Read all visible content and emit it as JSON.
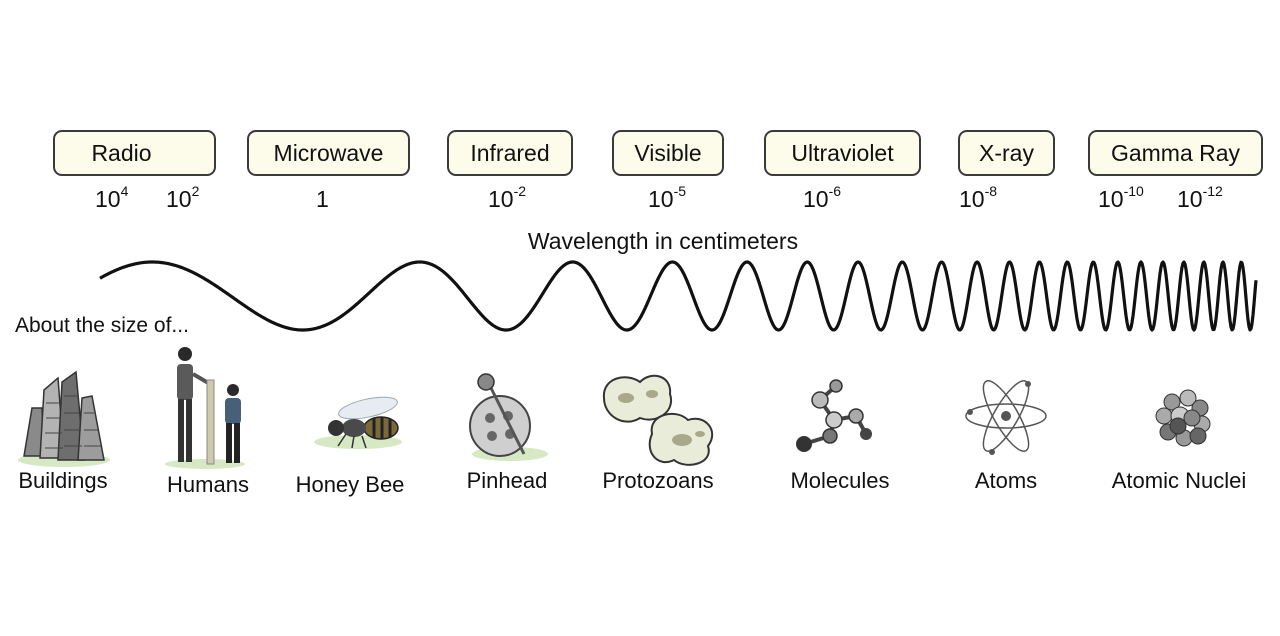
{
  "bands": [
    {
      "id": "radio",
      "label": "Radio"
    },
    {
      "id": "microwave",
      "label": "Microwave"
    },
    {
      "id": "infrared",
      "label": "Infrared"
    },
    {
      "id": "visible",
      "label": "Visible"
    },
    {
      "id": "ultraviolet",
      "label": "Ultraviolet"
    },
    {
      "id": "xray",
      "label": "X-ray"
    },
    {
      "id": "gamma",
      "label": "Gamma Ray"
    }
  ],
  "wavelengths": [
    {
      "base": "10",
      "exp": "4"
    },
    {
      "base": "10",
      "exp": "2"
    },
    {
      "base": "1",
      "exp": ""
    },
    {
      "base": "10",
      "exp": "-2"
    },
    {
      "base": "10",
      "exp": "-5"
    },
    {
      "base": "10",
      "exp": "-6"
    },
    {
      "base": "10",
      "exp": "-8"
    },
    {
      "base": "10",
      "exp": "-10"
    },
    {
      "base": "10",
      "exp": "-12"
    }
  ],
  "axis_label": "Wavelength in centimeters",
  "size_lead": "About the size of...",
  "objects": [
    {
      "label": "Buildings",
      "icon": "buildings-icon"
    },
    {
      "label": "Humans",
      "icon": "humans-icon"
    },
    {
      "label": "Honey Bee",
      "icon": "honey-bee-icon"
    },
    {
      "label": "Pinhead",
      "icon": "pinhead-icon"
    },
    {
      "label": "Protozoans",
      "icon": "protozoans-icon"
    },
    {
      "label": "Molecules",
      "icon": "molecules-icon"
    },
    {
      "label": "Atoms",
      "icon": "atoms-icon"
    },
    {
      "label": "Atomic Nuclei",
      "icon": "atomic-nuclei-icon"
    }
  ],
  "colors": {
    "band_fill": "#fdfbea",
    "band_border": "#3a3a3a",
    "wave": "#111111",
    "ground": "#d6e8c4"
  }
}
